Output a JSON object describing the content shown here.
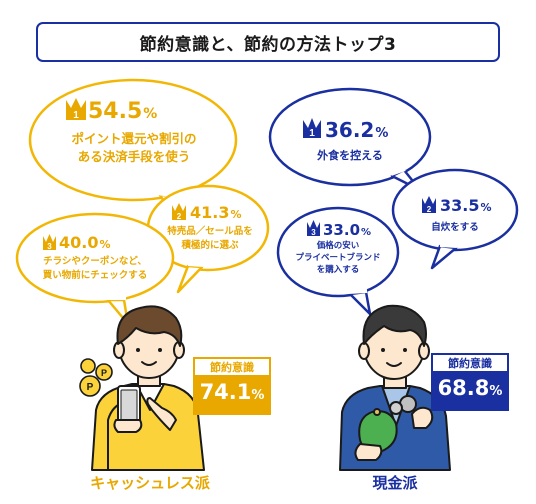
{
  "title": "節約意識と、節約の方法トップ3",
  "colors": {
    "yellow": "#e8a800",
    "yellow_bg": "#fbd23a",
    "blue": "#1a2fa0",
    "outline": "#1a1a1a"
  },
  "left": {
    "label": "キャッシュレス派",
    "awareness_label": "節約意識",
    "awareness_value": "74.1",
    "awareness_unit": "%",
    "items": [
      {
        "rank": "1",
        "value": "54.5",
        "unit": "%",
        "text_line1": "ポイント還元や割引の",
        "text_line2": "ある決済手段を使う"
      },
      {
        "rank": "2",
        "value": "41.3",
        "unit": "%",
        "text_line1": "特売品／セール品を",
        "text_line2": "積極的に選ぶ"
      },
      {
        "rank": "3",
        "value": "40.0",
        "unit": "%",
        "text_line1": "チラシやクーポンなど、",
        "text_line2": "買い物前にチェックする"
      }
    ]
  },
  "right": {
    "label": "現金派",
    "awareness_label": "節約意識",
    "awareness_value": "68.8",
    "awareness_unit": "%",
    "items": [
      {
        "rank": "1",
        "value": "36.2",
        "unit": "%",
        "text_line1": "外食を控える",
        "text_line2": ""
      },
      {
        "rank": "2",
        "value": "33.5",
        "unit": "%",
        "text_line1": "自炊をする",
        "text_line2": ""
      },
      {
        "rank": "3",
        "value": "33.0",
        "unit": "%",
        "text_line1": "価格の安い",
        "text_line2": "プライベートブランド",
        "text_line3": "を購入する"
      }
    ]
  }
}
